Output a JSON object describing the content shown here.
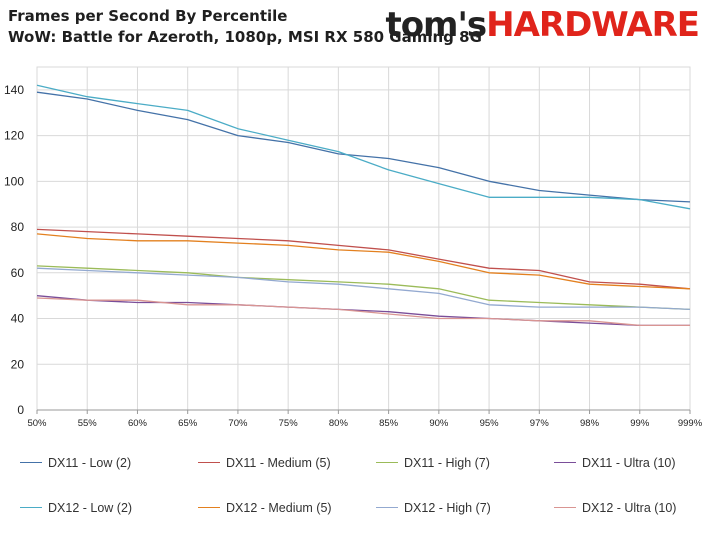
{
  "header": {
    "title": "Frames per Second By Percentile",
    "subtitle": "WoW: Battle for Azeroth, 1080p, MSI RX 580 Gaming 8G",
    "logo_part1": "tom's",
    "logo_part2": "HARDWARE",
    "logo_colors": {
      "part1": "#222222",
      "part2": "#e0241b"
    }
  },
  "chart_data": {
    "type": "line",
    "title": "Frames per Second By Percentile",
    "subtitle": "WoW: Battle for Azeroth, 1080p, MSI RX 580 Gaming 8G",
    "xlabel": "",
    "ylabel": "",
    "categories": [
      "50%",
      "55%",
      "60%",
      "65%",
      "70%",
      "75%",
      "80%",
      "85%",
      "90%",
      "95%",
      "97%",
      "98%",
      "99%",
      "999%"
    ],
    "ylim": [
      0,
      150
    ],
    "yticks": [
      0,
      20,
      40,
      60,
      80,
      100,
      120,
      140
    ],
    "grid": true,
    "legend_position": "bottom",
    "series": [
      {
        "name": "DX11 - Low (2)",
        "color": "#4472a8",
        "values": [
          139,
          136,
          131,
          127,
          120,
          117,
          112,
          110,
          106,
          100,
          96,
          94,
          92,
          91
        ]
      },
      {
        "name": "DX11 - Medium (5)",
        "color": "#c0504d",
        "values": [
          79,
          78,
          77,
          76,
          75,
          74,
          72,
          70,
          66,
          62,
          61,
          56,
          55,
          53
        ]
      },
      {
        "name": "DX11 - High (7)",
        "color": "#9bbb59",
        "values": [
          63,
          62,
          61,
          60,
          58,
          57,
          56,
          55,
          53,
          48,
          47,
          46,
          45,
          44
        ]
      },
      {
        "name": "DX11 - Ultra (10)",
        "color": "#7a4e99",
        "values": [
          50,
          48,
          47,
          47,
          46,
          45,
          44,
          43,
          41,
          40,
          39,
          38,
          37,
          37
        ]
      },
      {
        "name": "DX12 - Low (2)",
        "color": "#4bacc6",
        "values": [
          142,
          137,
          134,
          131,
          123,
          118,
          113,
          105,
          99,
          93,
          93,
          93,
          92,
          88
        ]
      },
      {
        "name": "DX12 - Medium (5)",
        "color": "#e3801f",
        "values": [
          77,
          75,
          74,
          74,
          73,
          72,
          70,
          69,
          65,
          60,
          59,
          55,
          54,
          53
        ]
      },
      {
        "name": "DX12 - High (7)",
        "color": "#93a9d0",
        "values": [
          62,
          61,
          60,
          59,
          58,
          56,
          55,
          53,
          51,
          46,
          45,
          45,
          45,
          44
        ]
      },
      {
        "name": "DX12 - Ultra (10)",
        "color": "#d99592",
        "values": [
          49,
          48,
          48,
          46,
          46,
          45,
          44,
          42,
          40,
          40,
          39,
          39,
          37,
          37
        ]
      }
    ]
  }
}
